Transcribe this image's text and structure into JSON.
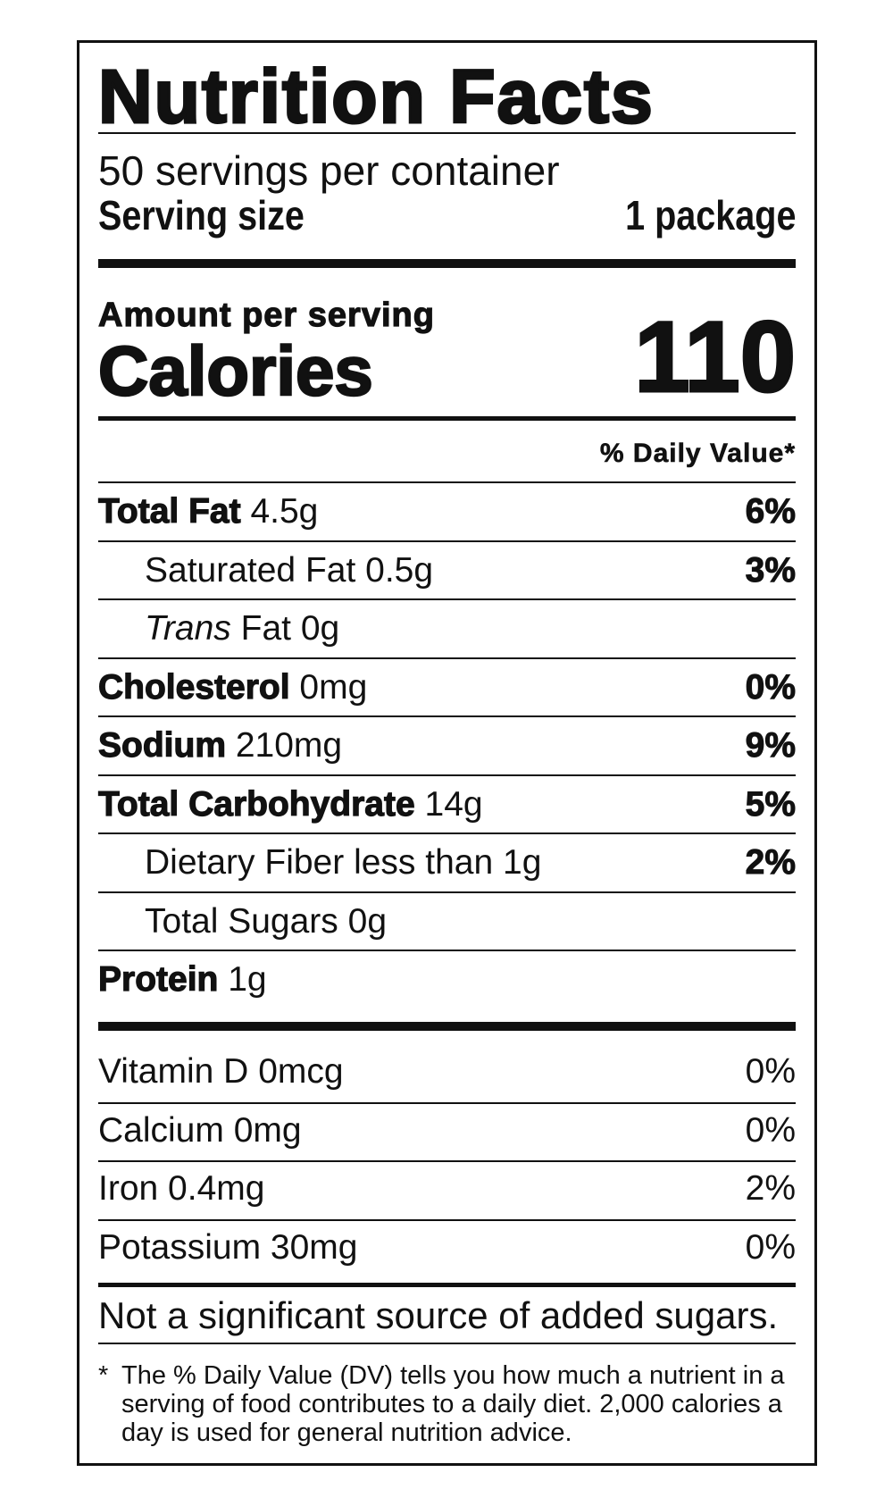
{
  "title": "Nutrition Facts",
  "servings_per_container": "50 servings per container",
  "serving_size": {
    "label": "Serving size",
    "value": "1 package"
  },
  "amount_per_serving": "Amount per serving",
  "calories": {
    "label": "Calories",
    "value": "110"
  },
  "daily_value_header": "% Daily Value*",
  "nutrients": [
    {
      "name": "Total Fat",
      "amount": "4.5g",
      "dv": "6%"
    },
    {
      "name": "Saturated Fat",
      "amount": "0.5g",
      "dv": "3%"
    },
    {
      "name": "Trans",
      "name_suffix": "Fat",
      "amount": "0g",
      "dv": ""
    },
    {
      "name": "Cholesterol",
      "amount": "0mg",
      "dv": "0%"
    },
    {
      "name": "Sodium",
      "amount": "210mg",
      "dv": "9%"
    },
    {
      "name": "Total Carbohydrate",
      "amount": "14g",
      "dv": "5%"
    },
    {
      "name": "Dietary Fiber",
      "amount": "less than 1g",
      "dv": "2%"
    },
    {
      "name": "Total Sugars",
      "amount": "0g",
      "dv": ""
    },
    {
      "name": "Protein",
      "amount": "1g",
      "dv": ""
    }
  ],
  "vitamins": [
    {
      "name": "Vitamin D",
      "amount": "0mcg",
      "dv": "0%"
    },
    {
      "name": "Calcium",
      "amount": "0mg",
      "dv": "0%"
    },
    {
      "name": "Iron",
      "amount": "0.4mg",
      "dv": "2%"
    },
    {
      "name": "Potassium",
      "amount": "30mg",
      "dv": "0%"
    }
  ],
  "added_sugars_note": "Not a significant source of added sugars.",
  "footnote": {
    "marker": "*",
    "text": "The % Daily Value (DV) tells you how much a nutrient in a serving of food contributes to a daily diet. 2,000 calories a day is used for general nutrition advice."
  }
}
